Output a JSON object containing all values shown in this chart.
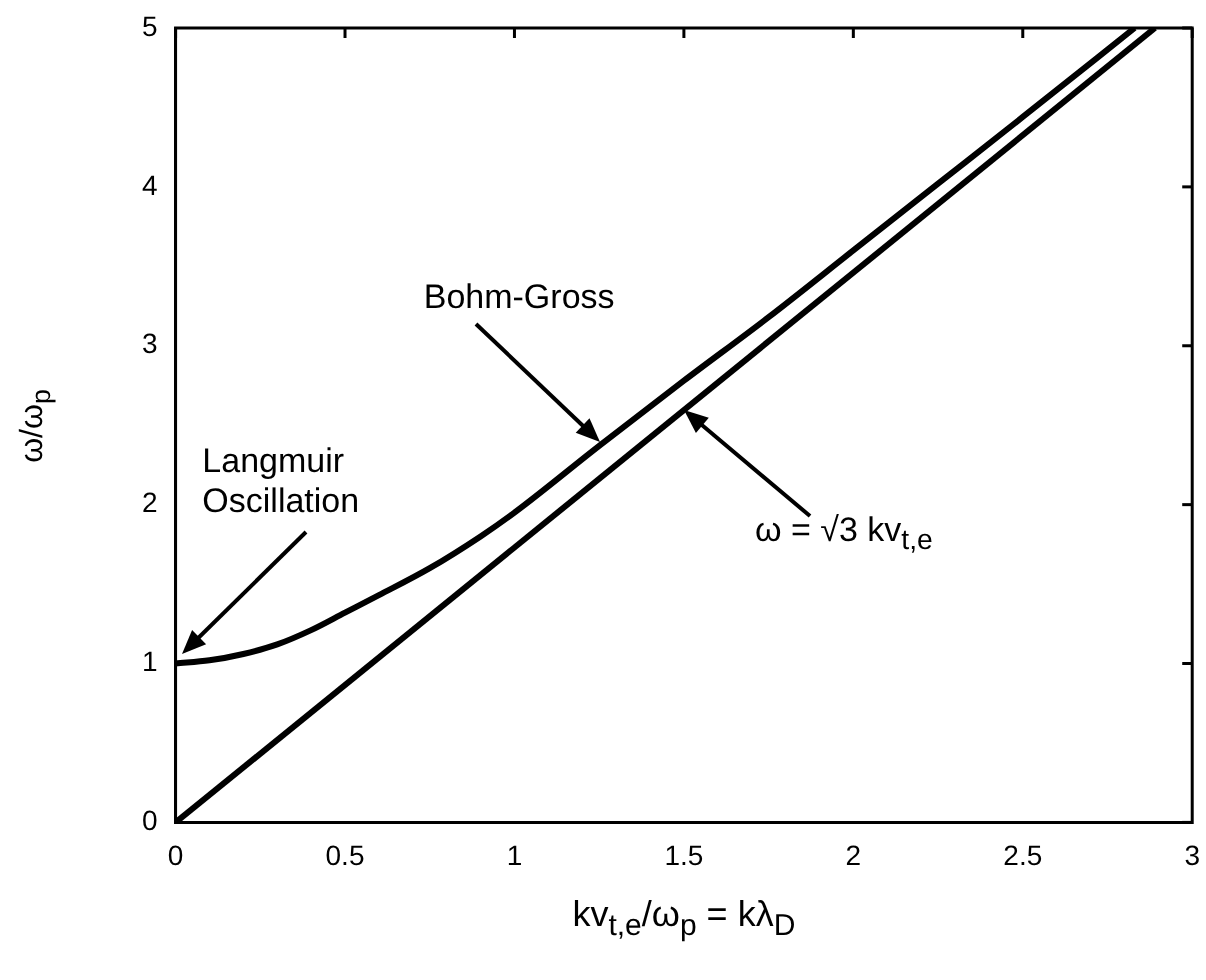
{
  "chart_data": {
    "type": "line",
    "xlabel": "kv$_{t,e}$/ω$_{p}$ = kλ$_{D}$",
    "ylabel": "ω/ω$_{p}$",
    "xlim": [
      0,
      3
    ],
    "ylim": [
      0,
      5
    ],
    "xticks": [
      0,
      0.5,
      1,
      1.5,
      2,
      2.5,
      3
    ],
    "yticks": [
      0,
      1,
      2,
      3,
      4,
      5
    ],
    "grid": false,
    "legend": false,
    "marker": "none",
    "line_style": "solid",
    "series": [
      {
        "color": "#000000",
        "x": [
          0,
          0.1,
          0.2,
          0.3,
          0.4,
          0.5,
          0.6,
          0.75,
          0.9,
          1,
          1.25,
          1.5,
          1.75,
          2,
          2.25,
          2.5,
          2.83
        ],
        "values": [
          1,
          1.02,
          1.06,
          1.12,
          1.21,
          1.32,
          1.43,
          1.6,
          1.8,
          1.95,
          2.37,
          2.78,
          3.18,
          3.6,
          4.02,
          4.44,
          5
        ]
      },
      {
        "color": "#000000",
        "x": [
          0,
          2.89
        ],
        "values": [
          0,
          5
        ]
      }
    ],
    "annotations": [
      {
        "text": "Langmuir Oscillation",
        "x": 0.02,
        "y": 1.06
      },
      {
        "text": "Bohm-Gross",
        "x": 1.25,
        "y": 2.4
      },
      {
        "text": "ω = √3 kv$_{t,e}$",
        "x": 1.5,
        "y": 2.6
      }
    ]
  }
}
